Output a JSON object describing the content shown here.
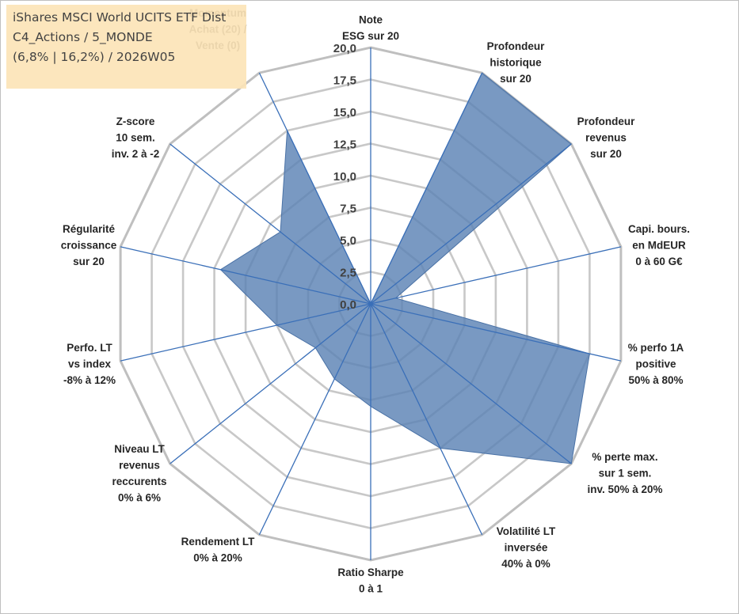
{
  "title": {
    "line1": "iShares MSCI World UCITS ETF Dist",
    "line2": "C4_Actions / 5_MONDE",
    "line3": "(6,8% | 16,2%) / 2026W05"
  },
  "chart_data": {
    "type": "radar",
    "r_min": 0,
    "r_max": 20,
    "ticks": [
      "0,0",
      "2,5",
      "5,0",
      "7,5",
      "10,0",
      "12,5",
      "15,0",
      "17,5",
      "20,0"
    ],
    "axes": [
      [
        "Note",
        "ESG sur 20"
      ],
      [
        "Profondeur",
        "historique",
        "sur 20"
      ],
      [
        "Profondeur",
        "revenus",
        "sur 20"
      ],
      [
        "Capi. bours.",
        "en MdEUR",
        "0 à 60 G€"
      ],
      [
        "% perfo 1A",
        "positive",
        "50% à 80%"
      ],
      [
        "% perte max.",
        "sur 1 sem.",
        "inv. 50% à 20%"
      ],
      [
        "Volatilité LT",
        "inversée",
        "40% à 0%"
      ],
      [
        "Ratio Sharpe",
        "0 à 1"
      ],
      [
        "Rendement LT",
        "0% à 20%"
      ],
      [
        "Niveau LT",
        "revenus",
        "reccurents",
        "0% à 6%"
      ],
      [
        "Perfo. LT",
        "vs index",
        "-8% à 12%"
      ],
      [
        "Régularité",
        "croissance",
        "sur 20"
      ],
      [
        "Z-score",
        "10 sem.",
        "inv. 2 à -2"
      ],
      [
        "Momentum",
        "Achat (20) /",
        "Vente (0)"
      ]
    ],
    "values": [
      0,
      20,
      20,
      2,
      17.5,
      20,
      12.5,
      8,
      6.5,
      5.5,
      7.5,
      12,
      9,
      15
    ],
    "colors": {
      "fill": "#5b82b5",
      "fill_opacity": 0.82,
      "area_stroke": "#4a72a6",
      "spoke": "#3a6fb8",
      "grid": "#c8c8c8",
      "outer": "#bfbfbf"
    },
    "grid": true,
    "legend": "none"
  }
}
